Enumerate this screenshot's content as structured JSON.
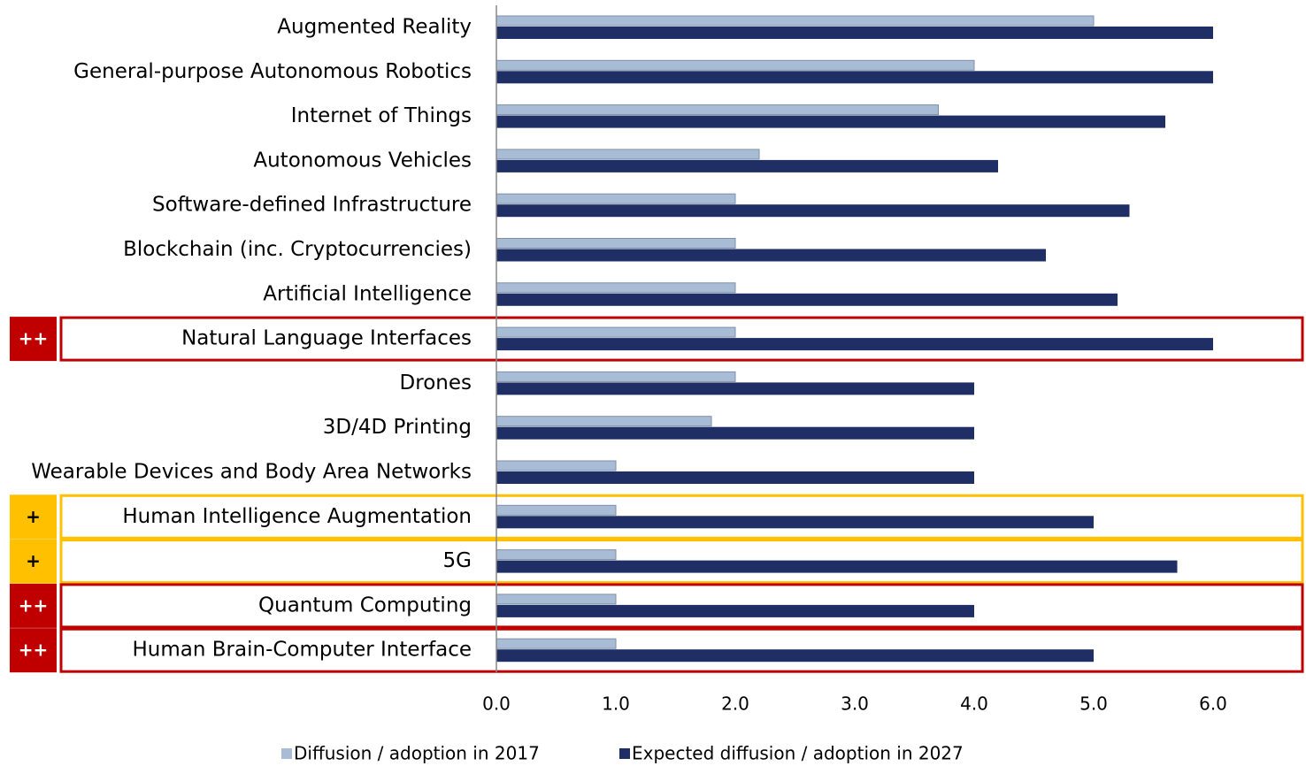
{
  "chart_data": {
    "type": "barh",
    "categories": [
      "Augmented Reality",
      "General-purpose Autonomous Robotics",
      "Internet of Things",
      "Autonomous Vehicles",
      "Software-defined Infrastructure",
      "Blockchain (inc. Cryptocurrencies)",
      "Artificial Intelligence",
      "Natural Language Interfaces",
      "Drones",
      "3D/4D Printing",
      "Wearable Devices and Body Area Networks",
      "Human Intelligence Augmentation",
      "5G",
      "Quantum Computing",
      "Human Brain-Computer Interface"
    ],
    "series": [
      {
        "name": "Diffusion / adoption in 2017",
        "color": "#a9bcd6",
        "values": [
          5.0,
          4.0,
          3.7,
          2.2,
          2.0,
          2.0,
          2.0,
          2.0,
          2.0,
          1.8,
          1.0,
          1.0,
          1.0,
          1.0,
          1.0
        ]
      },
      {
        "name": "Expected diffusion / adoption in 2027",
        "color": "#1f2f66",
        "values": [
          6.0,
          6.0,
          5.6,
          4.2,
          5.3,
          4.6,
          5.2,
          6.0,
          4.0,
          4.0,
          4.0,
          5.0,
          5.7,
          4.0,
          5.0
        ]
      }
    ],
    "xlim": [
      0,
      6.6
    ],
    "xticks": [
      {
        "value": 0,
        "label": "0.0"
      },
      {
        "value": 1,
        "label": "1.0"
      },
      {
        "value": 2,
        "label": "2.0"
      },
      {
        "value": 3,
        "label": "3.0"
      },
      {
        "value": 4,
        "label": "4.0"
      },
      {
        "value": 5,
        "label": "5.0"
      },
      {
        "value": 6,
        "label": "6.0"
      }
    ],
    "legend": "bottom",
    "highlights": [
      {
        "category": "Natural Language Interfaces",
        "label": "++",
        "color": "#c00000"
      },
      {
        "category": "Human Intelligence Augmentation",
        "label": "+",
        "color": "#ffc000"
      },
      {
        "category": "5G",
        "label": "+",
        "color": "#ffc000"
      },
      {
        "category": "Quantum Computing",
        "label": "++",
        "color": "#c00000"
      },
      {
        "category": "Human Brain-Computer Interface",
        "label": "++",
        "color": "#c00000"
      }
    ]
  }
}
